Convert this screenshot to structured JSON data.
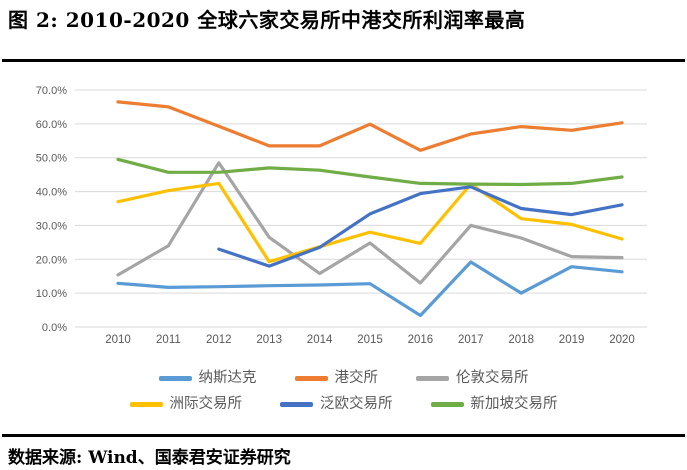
{
  "header": {
    "title": "图 2: 2010-2020 全球六家交易所中港交所利润率最高"
  },
  "footer": {
    "source": "数据来源: Wind、国泰君安证券研究"
  },
  "chart_data": {
    "type": "line",
    "title": "",
    "xlabel": "",
    "ylabel": "",
    "x": [
      2010,
      2011,
      2012,
      2013,
      2014,
      2015,
      2016,
      2017,
      2018,
      2019,
      2020
    ],
    "ylim": [
      0,
      70
    ],
    "ytick_step": 10,
    "yticks": [
      "70.0%",
      "60.0%",
      "50.0%",
      "40.0%",
      "30.0%",
      "20.0%",
      "10.0%",
      "0.0%"
    ],
    "grid": true,
    "grid_color": "#D9D9D9",
    "label_color": "#595959",
    "legend_position": "bottom",
    "legend_rows": 2,
    "series": [
      {
        "name": "纳斯达克",
        "color": "#5B9BD5",
        "values": [
          12.9,
          11.7,
          11.9,
          12.2,
          12.4,
          12.8,
          3.4,
          19.2,
          10.0,
          17.8,
          16.3
        ]
      },
      {
        "name": "港交所",
        "color": "#ED7D31",
        "values": [
          66.5,
          65.0,
          59.3,
          53.5,
          53.5,
          59.9,
          52.2,
          57.0,
          59.2,
          58.1,
          60.3
        ]
      },
      {
        "name": "伦敦交易所",
        "color": "#A5A5A5",
        "values": [
          15.4,
          24.0,
          48.5,
          26.5,
          15.8,
          24.8,
          13.0,
          30.0,
          26.3,
          20.8,
          20.5
        ]
      },
      {
        "name": "洲际交易所",
        "color": "#FFC000",
        "values": [
          37.0,
          40.3,
          42.4,
          19.3,
          23.7,
          28.0,
          24.7,
          42.2,
          32.0,
          30.3,
          26.0
        ]
      },
      {
        "name": "泛欧交易所",
        "color": "#4472C4",
        "values": [
          null,
          null,
          23.0,
          18.0,
          23.5,
          33.4,
          39.4,
          41.4,
          35.0,
          33.2,
          36.1
        ]
      },
      {
        "name": "新加坡交易所",
        "color": "#70AD47",
        "values": [
          49.5,
          45.7,
          45.7,
          47.0,
          46.3,
          44.3,
          42.4,
          42.2,
          42.1,
          42.4,
          44.3
        ]
      }
    ]
  }
}
